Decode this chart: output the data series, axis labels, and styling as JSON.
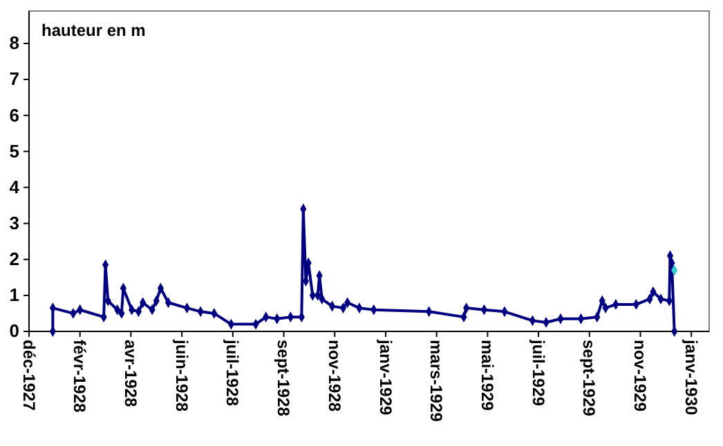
{
  "chart_data": {
    "type": "line",
    "ylabel": "hauteur en m",
    "xlim": [
      "1927-12-04",
      "1930-02-12"
    ],
    "ylim": [
      0,
      8.9
    ],
    "yticks": [
      0,
      1,
      2,
      3,
      4,
      5,
      6,
      7,
      8
    ],
    "xticks": [
      {
        "value": "1927-12-04",
        "label": "déc-1927"
      },
      {
        "value": "1928-02-02",
        "label": "févr-1928"
      },
      {
        "value": "1928-04-02",
        "label": "avr-1928"
      },
      {
        "value": "1928-06-01",
        "label": "juin-1928"
      },
      {
        "value": "1928-07-31",
        "label": "juil-1928"
      },
      {
        "value": "1928-09-29",
        "label": "sept-1928"
      },
      {
        "value": "1928-11-28",
        "label": "nov-1928"
      },
      {
        "value": "1929-01-27",
        "label": "janv-1929"
      },
      {
        "value": "1929-03-28",
        "label": "mars-1929"
      },
      {
        "value": "1929-05-27",
        "label": "mai-1929"
      },
      {
        "value": "1929-07-26",
        "label": "juil-1929"
      },
      {
        "value": "1929-09-24",
        "label": "sept-1929"
      },
      {
        "value": "1929-11-23",
        "label": "nov-1929"
      },
      {
        "value": "1930-01-22",
        "label": "janv-1930"
      }
    ],
    "grid": false,
    "marker": "diamond",
    "line_style": "solid",
    "series": [
      {
        "color": "#000080",
        "x": [
          "1928-01-01",
          "1928-01-01",
          "1928-01-25",
          "1928-02-02",
          "1928-03-01",
          "1928-03-03",
          "1928-03-06",
          "1928-03-17",
          "1928-03-22",
          "1928-03-24",
          "1928-04-03",
          "1928-04-11",
          "1928-04-16",
          "1928-04-27",
          "1928-05-02",
          "1928-05-07",
          "1928-05-16",
          "1928-06-07",
          "1928-06-23",
          "1928-07-09",
          "1928-07-29",
          "1928-08-27",
          "1928-09-08",
          "1928-09-21",
          "1928-10-07",
          "1928-10-20",
          "1928-10-22",
          "1928-10-25",
          "1928-10-28",
          "1928-11-02",
          "1928-11-08",
          "1928-11-10",
          "1928-11-13",
          "1928-11-25",
          "1928-12-08",
          "1928-12-13",
          "1928-12-27",
          "1929-01-13",
          "1929-03-19",
          "1929-04-29",
          "1929-05-02",
          "1929-05-23",
          "1929-06-16",
          "1929-07-19",
          "1929-08-04",
          "1929-08-21",
          "1929-09-14",
          "1929-10-03",
          "1929-10-09",
          "1929-10-13",
          "1929-10-25",
          "1929-11-18",
          "1929-12-04",
          "1929-12-08",
          "1929-12-17",
          "1929-12-27",
          "1929-12-28",
          "1929-12-30",
          "1930-01-02"
        ],
        "values": [
          0,
          0.65,
          0.5,
          0.6,
          0.4,
          1.85,
          0.85,
          0.6,
          0.5,
          1.2,
          0.6,
          0.55,
          0.8,
          0.6,
          0.85,
          1.2,
          0.8,
          0.65,
          0.55,
          0.5,
          0.2,
          0.2,
          0.4,
          0.35,
          0.4,
          0.4,
          3.4,
          1.4,
          1.9,
          1.0,
          1.0,
          1.55,
          0.9,
          0.7,
          0.65,
          0.8,
          0.65,
          0.6,
          0.55,
          0.4,
          0.65,
          0.6,
          0.55,
          0.3,
          0.25,
          0.35,
          0.35,
          0.4,
          0.85,
          0.65,
          0.75,
          0.75,
          0.9,
          1.1,
          0.9,
          0.85,
          2.1,
          1.9,
          0
        ]
      },
      {
        "type": "scatter",
        "color": "#33cccc",
        "x": [
          "1930-01-02"
        ],
        "values": [
          1.7
        ]
      }
    ]
  }
}
